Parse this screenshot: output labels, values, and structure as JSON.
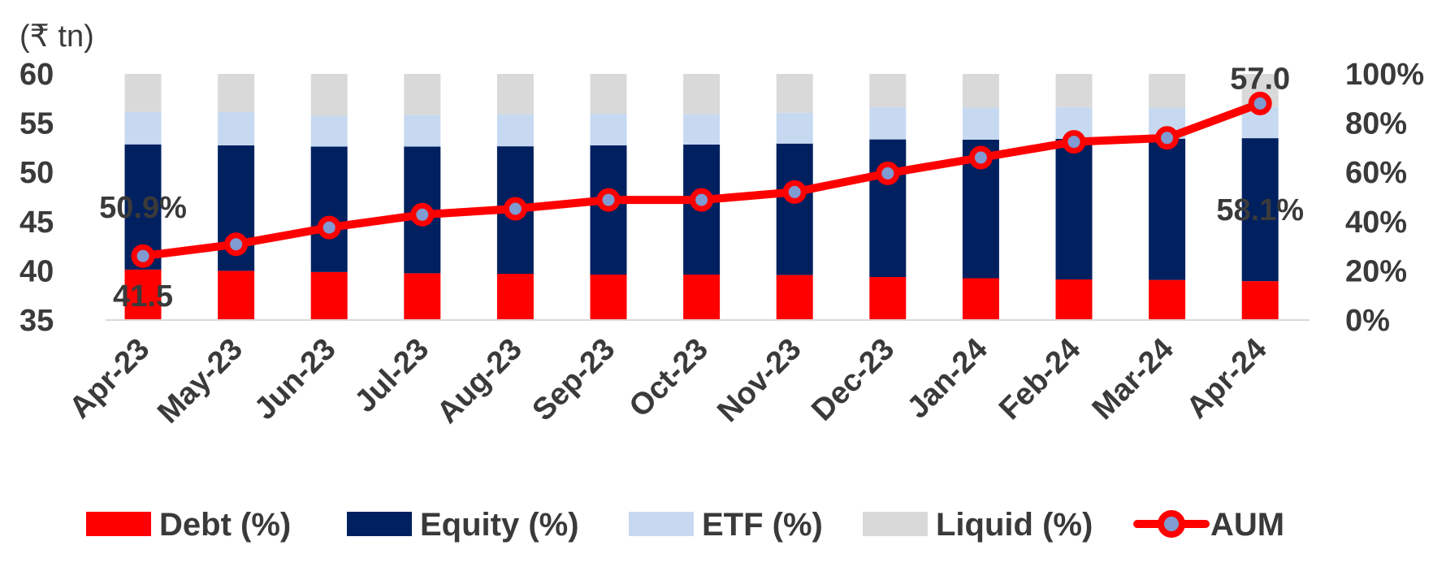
{
  "chart_data": {
    "type": "bar",
    "stacked": true,
    "unit_label": "(₹ tn)",
    "categories": [
      "Apr-23",
      "May-23",
      "Jun-23",
      "Jul-23",
      "Aug-23",
      "Sep-23",
      "Oct-23",
      "Nov-23",
      "Dec-23",
      "Jan-24",
      "Feb-24",
      "Mar-24",
      "Apr-24"
    ],
    "series": [
      {
        "name": "Debt (%)",
        "color": "#ff0000",
        "axis": "right",
        "values": [
          20.5,
          20.0,
          19.5,
          19.0,
          18.8,
          18.5,
          18.5,
          18.3,
          17.5,
          17.0,
          16.5,
          16.3,
          15.8
        ]
      },
      {
        "name": "Equity (%)",
        "color": "#002060",
        "axis": "right",
        "values": [
          50.9,
          51.0,
          51.0,
          51.5,
          51.8,
          52.5,
          52.8,
          53.4,
          55.9,
          56.3,
          57.1,
          57.4,
          58.1
        ]
      },
      {
        "name": "ETF (%)",
        "color": "#c6d9f1",
        "axis": "right",
        "values": [
          13.2,
          13.5,
          12.5,
          12.8,
          13.0,
          12.8,
          12.3,
          12.5,
          13.0,
          13.0,
          12.8,
          12.6,
          12.6
        ]
      },
      {
        "name": "Liquid (%)",
        "color": "#d9d9d9",
        "axis": "right",
        "values": [
          15.4,
          15.5,
          17.0,
          16.7,
          16.4,
          16.2,
          16.4,
          15.8,
          13.6,
          13.7,
          13.6,
          13.7,
          13.5
        ]
      },
      {
        "name": "AUM",
        "type": "line",
        "color": "#ff0000",
        "marker_fill": "#7f9bd1",
        "axis": "left",
        "values": [
          41.5,
          42.7,
          44.4,
          45.7,
          46.3,
          47.2,
          47.2,
          48.0,
          49.9,
          51.5,
          53.1,
          53.5,
          57.0
        ]
      }
    ],
    "y_left": {
      "min": 35,
      "max": 60,
      "ticks": [
        "35",
        "40",
        "45",
        "50",
        "55",
        "60"
      ]
    },
    "y_right": {
      "min": 0,
      "max": 100,
      "ticks": [
        "0%",
        "20%",
        "40%",
        "60%",
        "80%",
        "100%"
      ]
    },
    "data_labels": [
      {
        "text": "50.9%",
        "series": "Equity (%)",
        "category": "Apr-23"
      },
      {
        "text": "41.5",
        "series": "AUM",
        "category": "Apr-23"
      },
      {
        "text": "58.1%",
        "series": "Equity (%)",
        "category": "Apr-24"
      },
      {
        "text": "57.0",
        "series": "AUM",
        "category": "Apr-24"
      }
    ],
    "legend": {
      "position": "bottom",
      "items": [
        "Debt (%)",
        "Equity (%)",
        "ETF (%)",
        "Liquid (%)",
        "AUM"
      ]
    },
    "grid": false
  }
}
